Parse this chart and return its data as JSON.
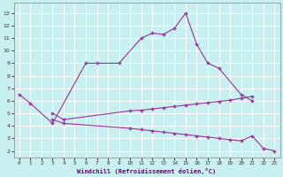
{
  "xlabel": "Windchill (Refroidissement éolien,°C)",
  "bg_color": "#c8f0f0",
  "line_color": "#993399",
  "grid_color": "#ffffff",
  "x_ticks": [
    0,
    1,
    2,
    3,
    4,
    5,
    6,
    7,
    8,
    9,
    10,
    11,
    12,
    13,
    14,
    15,
    16,
    17,
    18,
    19,
    20,
    21,
    22,
    23
  ],
  "y_ticks": [
    2,
    3,
    4,
    5,
    6,
    7,
    8,
    9,
    10,
    11,
    12,
    13
  ],
  "ylim": [
    1.5,
    13.8
  ],
  "xlim": [
    -0.5,
    23.5
  ],
  "series": [
    {
      "x": [
        0,
        1,
        3,
        6,
        7,
        9,
        11,
        12,
        13,
        14,
        15,
        16,
        17,
        18,
        20,
        21
      ],
      "y": [
        6.5,
        5.8,
        4.2,
        9.0,
        9.0,
        9.0,
        11.0,
        11.4,
        11.3,
        11.8,
        13.0,
        10.5,
        9.0,
        8.6,
        6.5,
        6.0
      ]
    },
    {
      "x": [
        3,
        4,
        10,
        11,
        12,
        13,
        14,
        15,
        16,
        17,
        18,
        19,
        20,
        21
      ],
      "y": [
        5.0,
        4.5,
        5.2,
        5.25,
        5.35,
        5.45,
        5.55,
        5.65,
        5.75,
        5.85,
        5.95,
        6.05,
        6.2,
        6.35
      ]
    },
    {
      "x": [
        3,
        4,
        10,
        11,
        12,
        13,
        14,
        15,
        16,
        17,
        18,
        19,
        20,
        21,
        22,
        23
      ],
      "y": [
        4.5,
        4.2,
        3.8,
        3.7,
        3.6,
        3.5,
        3.4,
        3.3,
        3.2,
        3.1,
        3.0,
        2.9,
        2.8,
        3.2,
        2.2,
        2.0
      ]
    }
  ]
}
